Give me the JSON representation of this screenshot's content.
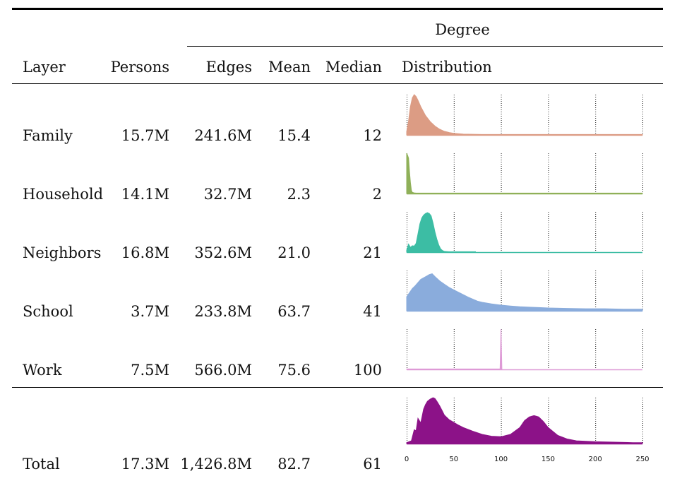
{
  "table": {
    "group_header": "Degree",
    "columns": [
      "Layer",
      "Persons",
      "Edges",
      "Mean",
      "Median",
      "Distribution"
    ],
    "rows": [
      {
        "layer": "Family",
        "persons": "15.7M",
        "edges": "241.6M",
        "mean": "15.4",
        "median": "12"
      },
      {
        "layer": "Household",
        "persons": "14.1M",
        "edges": "32.7M",
        "mean": "2.3",
        "median": "2"
      },
      {
        "layer": "Neighbors",
        "persons": "16.8M",
        "edges": "352.6M",
        "mean": "21.0",
        "median": "21"
      },
      {
        "layer": "School",
        "persons": "3.7M",
        "edges": "233.8M",
        "mean": "63.7",
        "median": "41"
      },
      {
        "layer": "Work",
        "persons": "7.5M",
        "edges": "566.0M",
        "mean": "75.6",
        "median": "100"
      }
    ],
    "total": {
      "layer": "Total",
      "persons": "17.3M",
      "edges": "1,426.8M",
      "mean": "82.7",
      "median": "61"
    }
  },
  "chart_data": {
    "type": "area",
    "x_ticks": [
      0,
      50,
      100,
      150,
      200,
      250
    ],
    "x_tick_labels": [
      "0",
      "50",
      "100",
      "150",
      "200",
      "250"
    ],
    "xlim": [
      0,
      250
    ],
    "grid": "dotted vertical at x ticks",
    "series": [
      {
        "name": "Family",
        "color": "#dc9c84",
        "x": [
          0,
          2,
          4,
          6,
          8,
          10,
          12,
          15,
          20,
          25,
          30,
          35,
          40,
          45,
          50,
          60,
          70,
          80,
          90,
          100,
          150,
          200,
          250
        ],
        "y": [
          0.08,
          0.35,
          0.7,
          0.92,
          1.0,
          0.95,
          0.86,
          0.7,
          0.48,
          0.33,
          0.22,
          0.14,
          0.09,
          0.06,
          0.04,
          0.02,
          0.015,
          0.01,
          0.01,
          0.01,
          0.01,
          0.01,
          0.01
        ]
      },
      {
        "name": "Household",
        "color": "#8fb059",
        "x": [
          0,
          1,
          2,
          3,
          4,
          5,
          6,
          8,
          10,
          50,
          100,
          150,
          200,
          250
        ],
        "y": [
          1.0,
          0.95,
          0.88,
          0.55,
          0.28,
          0.08,
          0.03,
          0.015,
          0.01,
          0.01,
          0.01,
          0.01,
          0.01,
          0.01
        ],
        "fill_to_x": 6
      },
      {
        "name": "Neighbors",
        "color": "#3cbda4",
        "x": [
          0,
          2,
          4,
          6,
          8,
          10,
          12,
          14,
          16,
          18,
          20,
          22,
          24,
          26,
          28,
          30,
          32,
          34,
          36,
          38,
          40,
          45,
          50,
          55,
          60,
          65,
          70,
          73
        ],
        "y": [
          0.05,
          0.2,
          0.12,
          0.16,
          0.15,
          0.22,
          0.45,
          0.7,
          0.85,
          0.92,
          0.96,
          0.98,
          0.96,
          0.9,
          0.72,
          0.5,
          0.32,
          0.18,
          0.08,
          0.04,
          0.02,
          0.01,
          0.01,
          0.01,
          0.01,
          0.01,
          0.01,
          0.01
        ],
        "fill_to_x": 38
      },
      {
        "name": "School",
        "color": "#8aacdc",
        "x": [
          0,
          3,
          6,
          9,
          12,
          15,
          18,
          21,
          24,
          27,
          30,
          35,
          40,
          45,
          50,
          55,
          60,
          65,
          70,
          75,
          80,
          90,
          100,
          110,
          120,
          130,
          140,
          150,
          170,
          190,
          210,
          230,
          250
        ],
        "y": [
          0.35,
          0.45,
          0.55,
          0.62,
          0.7,
          0.78,
          0.82,
          0.86,
          0.9,
          0.92,
          0.85,
          0.74,
          0.66,
          0.58,
          0.52,
          0.46,
          0.4,
          0.34,
          0.29,
          0.24,
          0.21,
          0.17,
          0.14,
          0.12,
          0.1,
          0.09,
          0.08,
          0.07,
          0.06,
          0.05,
          0.05,
          0.04,
          0.04
        ]
      },
      {
        "name": "Work",
        "color": "#de9ad6",
        "x": [
          0,
          20,
          40,
          60,
          80,
          99,
          100,
          101
        ],
        "y": [
          0.01,
          0.01,
          0.01,
          0.01,
          0.01,
          0.01,
          1.0,
          0.0
        ]
      },
      {
        "name": "Total",
        "color": "#8c1288",
        "x": [
          0,
          5,
          8,
          10,
          12,
          15,
          18,
          20,
          22,
          25,
          28,
          30,
          32,
          35,
          38,
          40,
          45,
          50,
          55,
          60,
          70,
          80,
          90,
          100,
          110,
          120,
          125,
          130,
          135,
          140,
          145,
          150,
          160,
          170,
          180,
          200,
          220,
          240,
          250
        ],
        "y": [
          0.02,
          0.06,
          0.3,
          0.28,
          0.55,
          0.45,
          0.75,
          0.85,
          0.92,
          0.97,
          1.0,
          0.98,
          0.92,
          0.82,
          0.7,
          0.62,
          0.52,
          0.46,
          0.4,
          0.35,
          0.27,
          0.2,
          0.16,
          0.15,
          0.2,
          0.35,
          0.5,
          0.58,
          0.61,
          0.58,
          0.48,
          0.35,
          0.18,
          0.1,
          0.06,
          0.04,
          0.03,
          0.02,
          0.02
        ]
      }
    ]
  }
}
